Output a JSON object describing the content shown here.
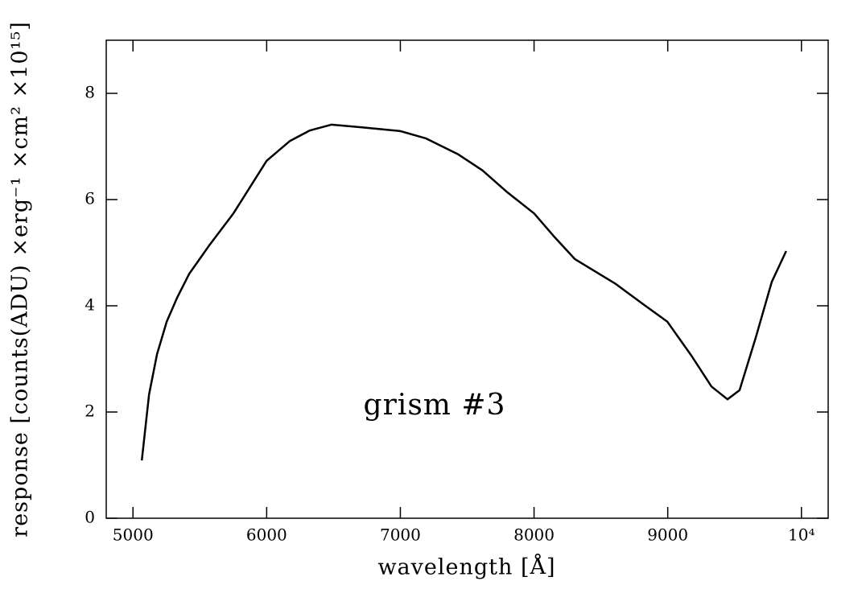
{
  "chart_data": {
    "type": "line",
    "xlabel": "wavelength [Å]",
    "ylabel": "response [counts(ADU) ×erg⁻¹ ×cm² ×10¹⁵]",
    "annotation": "grism #3",
    "xlim": [
      4800,
      10200
    ],
    "ylim": [
      0,
      9
    ],
    "xticks": [
      5000,
      6000,
      7000,
      8000,
      9000,
      {
        "value": 10000,
        "label": "10⁴"
      }
    ],
    "yticks": [
      0,
      2,
      4,
      6,
      8
    ],
    "grid": false,
    "series": [
      {
        "color": "#000000",
        "x": [
          5066,
          5120,
          5180,
          5252,
          5330,
          5420,
          5571,
          5751,
          6000,
          6172,
          6322,
          6484,
          6713,
          7000,
          7193,
          7434,
          7614,
          7794,
          8000,
          8155,
          8305,
          8455,
          8606,
          8816,
          8997,
          9177,
          9327,
          9447,
          9537,
          9657,
          9778,
          9886
        ],
        "values": [
          1.09,
          2.33,
          3.09,
          3.7,
          4.15,
          4.6,
          5.14,
          5.74,
          6.73,
          7.1,
          7.3,
          7.41,
          7.36,
          7.29,
          7.15,
          6.85,
          6.55,
          6.15,
          5.74,
          5.29,
          4.88,
          4.65,
          4.42,
          4.03,
          3.7,
          3.06,
          2.48,
          2.24,
          2.41,
          3.39,
          4.45,
          5.03
        ]
      }
    ]
  }
}
